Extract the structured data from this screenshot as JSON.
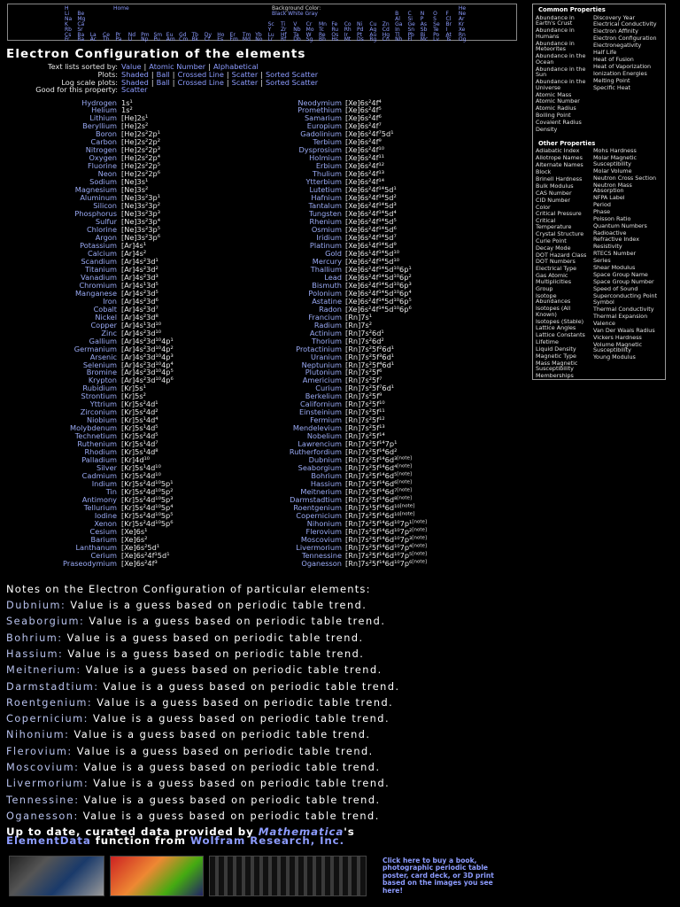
{
  "nav": {
    "home": "Home",
    "background_label": "Background Color:",
    "background_options": [
      "Black",
      "White",
      "Gray"
    ],
    "periodic_rows": [
      [
        [
          "H"
        ],
        [
          "He"
        ]
      ],
      [
        [
          "Li",
          "Be"
        ],
        [
          "B",
          "C",
          "N",
          "O",
          "F",
          "Ne"
        ]
      ],
      [
        [
          "Na",
          "Mg"
        ],
        [
          "Al",
          "Si",
          "P",
          "S",
          "Cl",
          "Ar"
        ]
      ],
      [
        [
          "K",
          "Ca"
        ],
        [
          "Sc",
          "Ti",
          "V",
          "Cr",
          "Mn",
          "Fe",
          "Co",
          "Ni",
          "Cu",
          "Zn",
          "Ga",
          "Ge",
          "As",
          "Se",
          "Br",
          "Kr"
        ]
      ],
      [
        [
          "Rb",
          "Sr"
        ],
        [
          "Y",
          "Zr",
          "Nb",
          "Mo",
          "Tc",
          "Ru",
          "Rh",
          "Pd",
          "Ag",
          "Cd",
          "In",
          "Sn",
          "Sb",
          "Te",
          "I",
          "Xe"
        ]
      ],
      [
        [
          "Cs",
          "Ba",
          "La",
          "Ce",
          "Pr",
          "Nd",
          "Pm",
          "Sm",
          "Eu",
          "Gd",
          "Tb",
          "Dy",
          "Ho",
          "Er",
          "Tm",
          "Yb",
          "Lu",
          "Hf",
          "Ta",
          "W",
          "Re",
          "Os",
          "Ir",
          "Pt",
          "Au",
          "Hg",
          "Tl",
          "Pb",
          "Bi",
          "Po",
          "At",
          "Rn"
        ]
      ],
      [
        [
          "Fr",
          "Ra",
          "Ac",
          "Th",
          "Pa",
          "U",
          "Np",
          "Pu",
          "Am",
          "Cm",
          "Bk",
          "Cf",
          "Es",
          "Fm",
          "Md",
          "No",
          "Lr",
          "Rf",
          "Db",
          "Sg",
          "Bh",
          "Hs",
          "Mt",
          "Ds",
          "Rg",
          "Cn",
          "Nh",
          "Fl",
          "Mc",
          "Lv",
          "Ts",
          "Og"
        ]
      ]
    ]
  },
  "title": "Electron Configuration of the elements",
  "options": {
    "separator": "|",
    "rows": [
      {
        "label": "Text lists sorted by:",
        "links": [
          "Value",
          "Atomic Number",
          "Alphabetical"
        ]
      },
      {
        "label": "Plots:",
        "links": [
          "Shaded",
          "Ball",
          "Crossed Line",
          "Scatter",
          "Sorted Scatter"
        ]
      },
      {
        "label": "Log scale plots:",
        "links": [
          "Shaded",
          "Ball",
          "Crossed Line",
          "Scatter",
          "Sorted Scatter"
        ]
      },
      {
        "label": "Good for this property:",
        "links": [
          "Scatter"
        ]
      }
    ]
  },
  "elements": {
    "left": [
      {
        "name": "Hydrogen",
        "config": "1s¹"
      },
      {
        "name": "Helium",
        "config": "1s²"
      },
      {
        "name": "Lithium",
        "config": "[He]2s¹"
      },
      {
        "name": "Beryllium",
        "config": "[He]2s²"
      },
      {
        "name": "Boron",
        "config": "[He]2s²2p¹"
      },
      {
        "name": "Carbon",
        "config": "[He]2s²2p²"
      },
      {
        "name": "Nitrogen",
        "config": "[He]2s²2p³"
      },
      {
        "name": "Oxygen",
        "config": "[He]2s²2p⁴"
      },
      {
        "name": "Fluorine",
        "config": "[He]2s²2p⁵"
      },
      {
        "name": "Neon",
        "config": "[He]2s²2p⁶"
      },
      {
        "name": "Sodium",
        "config": "[Ne]3s¹"
      },
      {
        "name": "Magnesium",
        "config": "[Ne]3s²"
      },
      {
        "name": "Aluminum",
        "config": "[Ne]3s²3p¹"
      },
      {
        "name": "Silicon",
        "config": "[Ne]3s²3p²"
      },
      {
        "name": "Phosphorus",
        "config": "[Ne]3s²3p³"
      },
      {
        "name": "Sulfur",
        "config": "[Ne]3s²3p⁴"
      },
      {
        "name": "Chlorine",
        "config": "[Ne]3s²3p⁵"
      },
      {
        "name": "Argon",
        "config": "[Ne]3s²3p⁶"
      },
      {
        "name": "Potassium",
        "config": "[Ar]4s¹"
      },
      {
        "name": "Calcium",
        "config": "[Ar]4s²"
      },
      {
        "name": "Scandium",
        "config": "[Ar]4s²3d¹"
      },
      {
        "name": "Titanium",
        "config": "[Ar]4s²3d²"
      },
      {
        "name": "Vanadium",
        "config": "[Ar]4s²3d³"
      },
      {
        "name": "Chromium",
        "config": "[Ar]4s¹3d⁵"
      },
      {
        "name": "Manganese",
        "config": "[Ar]4s²3d⁵"
      },
      {
        "name": "Iron",
        "config": "[Ar]4s²3d⁶"
      },
      {
        "name": "Cobalt",
        "config": "[Ar]4s²3d⁷"
      },
      {
        "name": "Nickel",
        "config": "[Ar]4s²3d⁸"
      },
      {
        "name": "Copper",
        "config": "[Ar]4s¹3d¹⁰"
      },
      {
        "name": "Zinc",
        "config": "[Ar]4s²3d¹⁰"
      },
      {
        "name": "Gallium",
        "config": "[Ar]4s²3d¹⁰4p¹"
      },
      {
        "name": "Germanium",
        "config": "[Ar]4s²3d¹⁰4p²"
      },
      {
        "name": "Arsenic",
        "config": "[Ar]4s²3d¹⁰4p³"
      },
      {
        "name": "Selenium",
        "config": "[Ar]4s²3d¹⁰4p⁴"
      },
      {
        "name": "Bromine",
        "config": "[Ar]4s²3d¹⁰4p⁵"
      },
      {
        "name": "Krypton",
        "config": "[Ar]4s²3d¹⁰4p⁶"
      },
      {
        "name": "Rubidium",
        "config": "[Kr]5s¹"
      },
      {
        "name": "Strontium",
        "config": "[Kr]5s²"
      },
      {
        "name": "Yttrium",
        "config": "[Kr]5s²4d¹"
      },
      {
        "name": "Zirconium",
        "config": "[Kr]5s²4d²"
      },
      {
        "name": "Niobium",
        "config": "[Kr]5s¹4d⁴"
      },
      {
        "name": "Molybdenum",
        "config": "[Kr]5s¹4d⁵"
      },
      {
        "name": "Technetium",
        "config": "[Kr]5s²4d⁵"
      },
      {
        "name": "Ruthenium",
        "config": "[Kr]5s¹4d⁷"
      },
      {
        "name": "Rhodium",
        "config": "[Kr]5s¹4d⁸"
      },
      {
        "name": "Palladium",
        "config": "[Kr]4d¹⁰"
      },
      {
        "name": "Silver",
        "config": "[Kr]5s¹4d¹⁰"
      },
      {
        "name": "Cadmium",
        "config": "[Kr]5s²4d¹⁰"
      },
      {
        "name": "Indium",
        "config": "[Kr]5s²4d¹⁰5p¹"
      },
      {
        "name": "Tin",
        "config": "[Kr]5s²4d¹⁰5p²"
      },
      {
        "name": "Antimony",
        "config": "[Kr]5s²4d¹⁰5p³"
      },
      {
        "name": "Tellurium",
        "config": "[Kr]5s²4d¹⁰5p⁴"
      },
      {
        "name": "Iodine",
        "config": "[Kr]5s²4d¹⁰5p⁵"
      },
      {
        "name": "Xenon",
        "config": "[Kr]5s²4d¹⁰5p⁶"
      },
      {
        "name": "Cesium",
        "config": "[Xe]6s¹"
      },
      {
        "name": "Barium",
        "config": "[Xe]6s²"
      },
      {
        "name": "Lanthanum",
        "config": "[Xe]6s²5d¹"
      },
      {
        "name": "Cerium",
        "config": "[Xe]6s²4f¹5d¹"
      },
      {
        "name": "Praseodymium",
        "config": "[Xe]6s²4f³"
      }
    ],
    "right": [
      {
        "name": "Neodymium",
        "config": "[Xe]6s²4f⁴"
      },
      {
        "name": "Promethium",
        "config": "[Xe]6s²4f⁵"
      },
      {
        "name": "Samarium",
        "config": "[Xe]6s²4f⁶"
      },
      {
        "name": "Europium",
        "config": "[Xe]6s²4f⁷"
      },
      {
        "name": "Gadolinium",
        "config": "[Xe]6s²4f⁷5d¹"
      },
      {
        "name": "Terbium",
        "config": "[Xe]6s²4f⁹"
      },
      {
        "name": "Dysprosium",
        "config": "[Xe]6s²4f¹⁰"
      },
      {
        "name": "Holmium",
        "config": "[Xe]6s²4f¹¹"
      },
      {
        "name": "Erbium",
        "config": "[Xe]6s²4f¹²"
      },
      {
        "name": "Thulium",
        "config": "[Xe]6s²4f¹³"
      },
      {
        "name": "Ytterbium",
        "config": "[Xe]6s²4f¹⁴"
      },
      {
        "name": "Lutetium",
        "config": "[Xe]6s²4f¹⁴5d¹"
      },
      {
        "name": "Hafnium",
        "config": "[Xe]6s²4f¹⁴5d²"
      },
      {
        "name": "Tantalum",
        "config": "[Xe]6s²4f¹⁴5d³"
      },
      {
        "name": "Tungsten",
        "config": "[Xe]6s²4f¹⁴5d⁴"
      },
      {
        "name": "Rhenium",
        "config": "[Xe]6s²4f¹⁴5d⁵"
      },
      {
        "name": "Osmium",
        "config": "[Xe]6s²4f¹⁴5d⁶"
      },
      {
        "name": "Iridium",
        "config": "[Xe]6s²4f¹⁴5d⁷"
      },
      {
        "name": "Platinum",
        "config": "[Xe]6s¹4f¹⁴5d⁹"
      },
      {
        "name": "Gold",
        "config": "[Xe]6s¹4f¹⁴5d¹⁰"
      },
      {
        "name": "Mercury",
        "config": "[Xe]6s²4f¹⁴5d¹⁰"
      },
      {
        "name": "Thallium",
        "config": "[Xe]6s²4f¹⁴5d¹⁰6p¹"
      },
      {
        "name": "Lead",
        "config": "[Xe]6s²4f¹⁴5d¹⁰6p²"
      },
      {
        "name": "Bismuth",
        "config": "[Xe]6s²4f¹⁴5d¹⁰6p³"
      },
      {
        "name": "Polonium",
        "config": "[Xe]6s²4f¹⁴5d¹⁰6p⁴"
      },
      {
        "name": "Astatine",
        "config": "[Xe]6s²4f¹⁴5d¹⁰6p⁵"
      },
      {
        "name": "Radon",
        "config": "[Xe]6s²4f¹⁴5d¹⁰6p⁶"
      },
      {
        "name": "Francium",
        "config": "[Rn]7s¹"
      },
      {
        "name": "Radium",
        "config": "[Rn]7s²"
      },
      {
        "name": "Actinium",
        "config": "[Rn]7s²6d¹"
      },
      {
        "name": "Thorium",
        "config": "[Rn]7s²6d²"
      },
      {
        "name": "Protactinium",
        "config": "[Rn]7s²5f²6d¹"
      },
      {
        "name": "Uranium",
        "config": "[Rn]7s²5f³6d¹"
      },
      {
        "name": "Neptunium",
        "config": "[Rn]7s²5f⁴6d¹"
      },
      {
        "name": "Plutonium",
        "config": "[Rn]7s²5f⁶"
      },
      {
        "name": "Americium",
        "config": "[Rn]7s²5f⁷"
      },
      {
        "name": "Curium",
        "config": "[Rn]7s²5f⁷6d¹"
      },
      {
        "name": "Berkelium",
        "config": "[Rn]7s²5f⁹"
      },
      {
        "name": "Californium",
        "config": "[Rn]7s²5f¹⁰"
      },
      {
        "name": "Einsteinium",
        "config": "[Rn]7s²5f¹¹"
      },
      {
        "name": "Fermium",
        "config": "[Rn]7s²5f¹²"
      },
      {
        "name": "Mendelevium",
        "config": "[Rn]7s²5f¹³"
      },
      {
        "name": "Nobelium",
        "config": "[Rn]7s²5f¹⁴"
      },
      {
        "name": "Lawrencium",
        "config": "[Rn]7s²5f¹⁴7p¹"
      },
      {
        "name": "Rutherfordium",
        "config": "[Rn]7s²5f¹⁴6d²"
      },
      {
        "name": "Dubnium",
        "config": "[Rn]7s²5f¹⁴6d³",
        "note": "[note]"
      },
      {
        "name": "Seaborgium",
        "config": "[Rn]7s²5f¹⁴6d⁴",
        "note": "[note]"
      },
      {
        "name": "Bohrium",
        "config": "[Rn]7s²5f¹⁴6d⁵",
        "note": "[note]"
      },
      {
        "name": "Hassium",
        "config": "[Rn]7s²5f¹⁴6d⁶",
        "note": "[note]"
      },
      {
        "name": "Meitnerium",
        "config": "[Rn]7s²5f¹⁴6d⁷",
        "note": "[note]"
      },
      {
        "name": "Darmstadtium",
        "config": "[Rn]7s²5f¹⁴6d⁸",
        "note": "[note]"
      },
      {
        "name": "Roentgenium",
        "config": "[Rn]7s¹5f¹⁴6d¹⁰",
        "note": "[note]"
      },
      {
        "name": "Copernicium",
        "config": "[Rn]7s²5f¹⁴6d¹⁰",
        "note": "[note]"
      },
      {
        "name": "Nihonium",
        "config": "[Rn]7s²5f¹⁴6d¹⁰7p¹",
        "note": "[note]"
      },
      {
        "name": "Flerovium",
        "config": "[Rn]7s²5f¹⁴6d¹⁰7p²",
        "note": "[note]"
      },
      {
        "name": "Moscovium",
        "config": "[Rn]7s²5f¹⁴6d¹⁰7p³",
        "note": "[note]"
      },
      {
        "name": "Livermorium",
        "config": "[Rn]7s²5f¹⁴6d¹⁰7p⁴",
        "note": "[note]"
      },
      {
        "name": "Tennessine",
        "config": "[Rn]7s²5f¹⁴6d¹⁰7p⁵",
        "note": "[note]"
      },
      {
        "name": "Oganesson",
        "config": "[Rn]7s²5f¹⁴6d¹⁰7p⁶",
        "note": "[note]"
      }
    ]
  },
  "notes": {
    "heading": "Notes on the Electron Configuration of particular elements:",
    "items": [
      {
        "element": "Dubnium:",
        "text": "Value is a guess based on periodic table trend."
      },
      {
        "element": "Seaborgium:",
        "text": "Value is a guess based on periodic table trend."
      },
      {
        "element": "Bohrium:",
        "text": "Value is a guess based on periodic table trend."
      },
      {
        "element": "Hassium:",
        "text": "Value is a guess based on periodic table trend."
      },
      {
        "element": "Meitnerium:",
        "text": "Value is a guess based on periodic table trend."
      },
      {
        "element": "Darmstadtium:",
        "text": "Value is a guess based on periodic table trend."
      },
      {
        "element": "Roentgenium:",
        "text": "Value is a guess based on periodic table trend."
      },
      {
        "element": "Copernicium:",
        "text": "Value is a guess based on periodic table trend."
      },
      {
        "element": "Nihonium:",
        "text": "Value is a guess based on periodic table trend."
      },
      {
        "element": "Flerovium:",
        "text": "Value is a guess based on periodic table trend."
      },
      {
        "element": "Moscovium:",
        "text": "Value is a guess based on periodic table trend."
      },
      {
        "element": "Livermorium:",
        "text": "Value is a guess based on periodic table trend."
      },
      {
        "element": "Tennessine:",
        "text": "Value is a guess based on periodic table trend."
      },
      {
        "element": "Oganesson:",
        "text": "Value is a guess based on periodic table trend."
      }
    ]
  },
  "credit": {
    "prefix": "Up to date, curated data provided by",
    "mathematica": "Mathematica",
    "suffix": "'s",
    "element_data": "ElementData",
    "middle": "function from",
    "wolfram": "Wolfram Research, Inc."
  },
  "promo": "Click here to buy a book, photographic periodic table poster, card deck, or 3D print based on the images you see here!",
  "sidebar": {
    "common": {
      "heading": "Common Properties",
      "left": [
        "Abundance in Earth's Crust",
        "Abundance in Humans",
        "Abundance in Meteorites",
        "Abundance in the Ocean",
        "Abundance in the Sun",
        "Abundance in the Universe",
        "Atomic Mass",
        "Atomic Number",
        "Atomic Radius",
        "Boiling Point",
        "Covalent Radius",
        "Density"
      ],
      "right": [
        "Discovery Year",
        "Electrical Conductivity",
        "Electron Affinity",
        "Electron Configuration",
        "Electronegativity",
        "Half Life",
        "Heat of Fusion",
        "Heat of Vaporization",
        "Ionization Energies",
        "Melting Point",
        "Specific Heat"
      ]
    },
    "other": {
      "heading": "Other Properties",
      "left": [
        "Adiabatic Index",
        "Allotrope Names",
        "Alternate Names",
        "Block",
        "Brinell Hardness",
        "Bulk Modulus",
        "CAS Number",
        "CID Number",
        "Color",
        "Critical Pressure",
        "Critical Temperature",
        "Crystal Structure",
        "Curie Point",
        "Decay Mode",
        "DOT Hazard Class",
        "DOT Numbers",
        "Electrical Type",
        "Gas Atomic Multiplicities",
        "Group",
        "Isotope Abundances",
        "Isotopes (All Known)",
        "Isotopes (Stable)",
        "Lattice Angles",
        "Lattice Constants",
        "Lifetime",
        "Liquid Density",
        "Magnetic Type",
        "Mass Magnetic Susceptibility",
        "Memberships"
      ],
      "right": [
        "Mohs Hardness",
        "Molar Magnetic Susceptibility",
        "Molar Volume",
        "Neutron Cross Section",
        "Neutron Mass Absorption",
        "NFPA Label",
        "Period",
        "Phase",
        "Poisson Ratio",
        "Quantum Numbers",
        "Radioactive",
        "Refractive Index",
        "Resistivity",
        "RTECS Number",
        "Series",
        "Shear Modulus",
        "Space Group Name",
        "Space Group Number",
        "Speed of Sound",
        "Superconducting Point",
        "Symbol",
        "Thermal Conductivity",
        "Thermal Expansion",
        "Valence",
        "Van Der Waals Radius",
        "Vickers Hardness",
        "Volume Magnetic Susceptibility",
        "Young Modulus"
      ]
    }
  }
}
